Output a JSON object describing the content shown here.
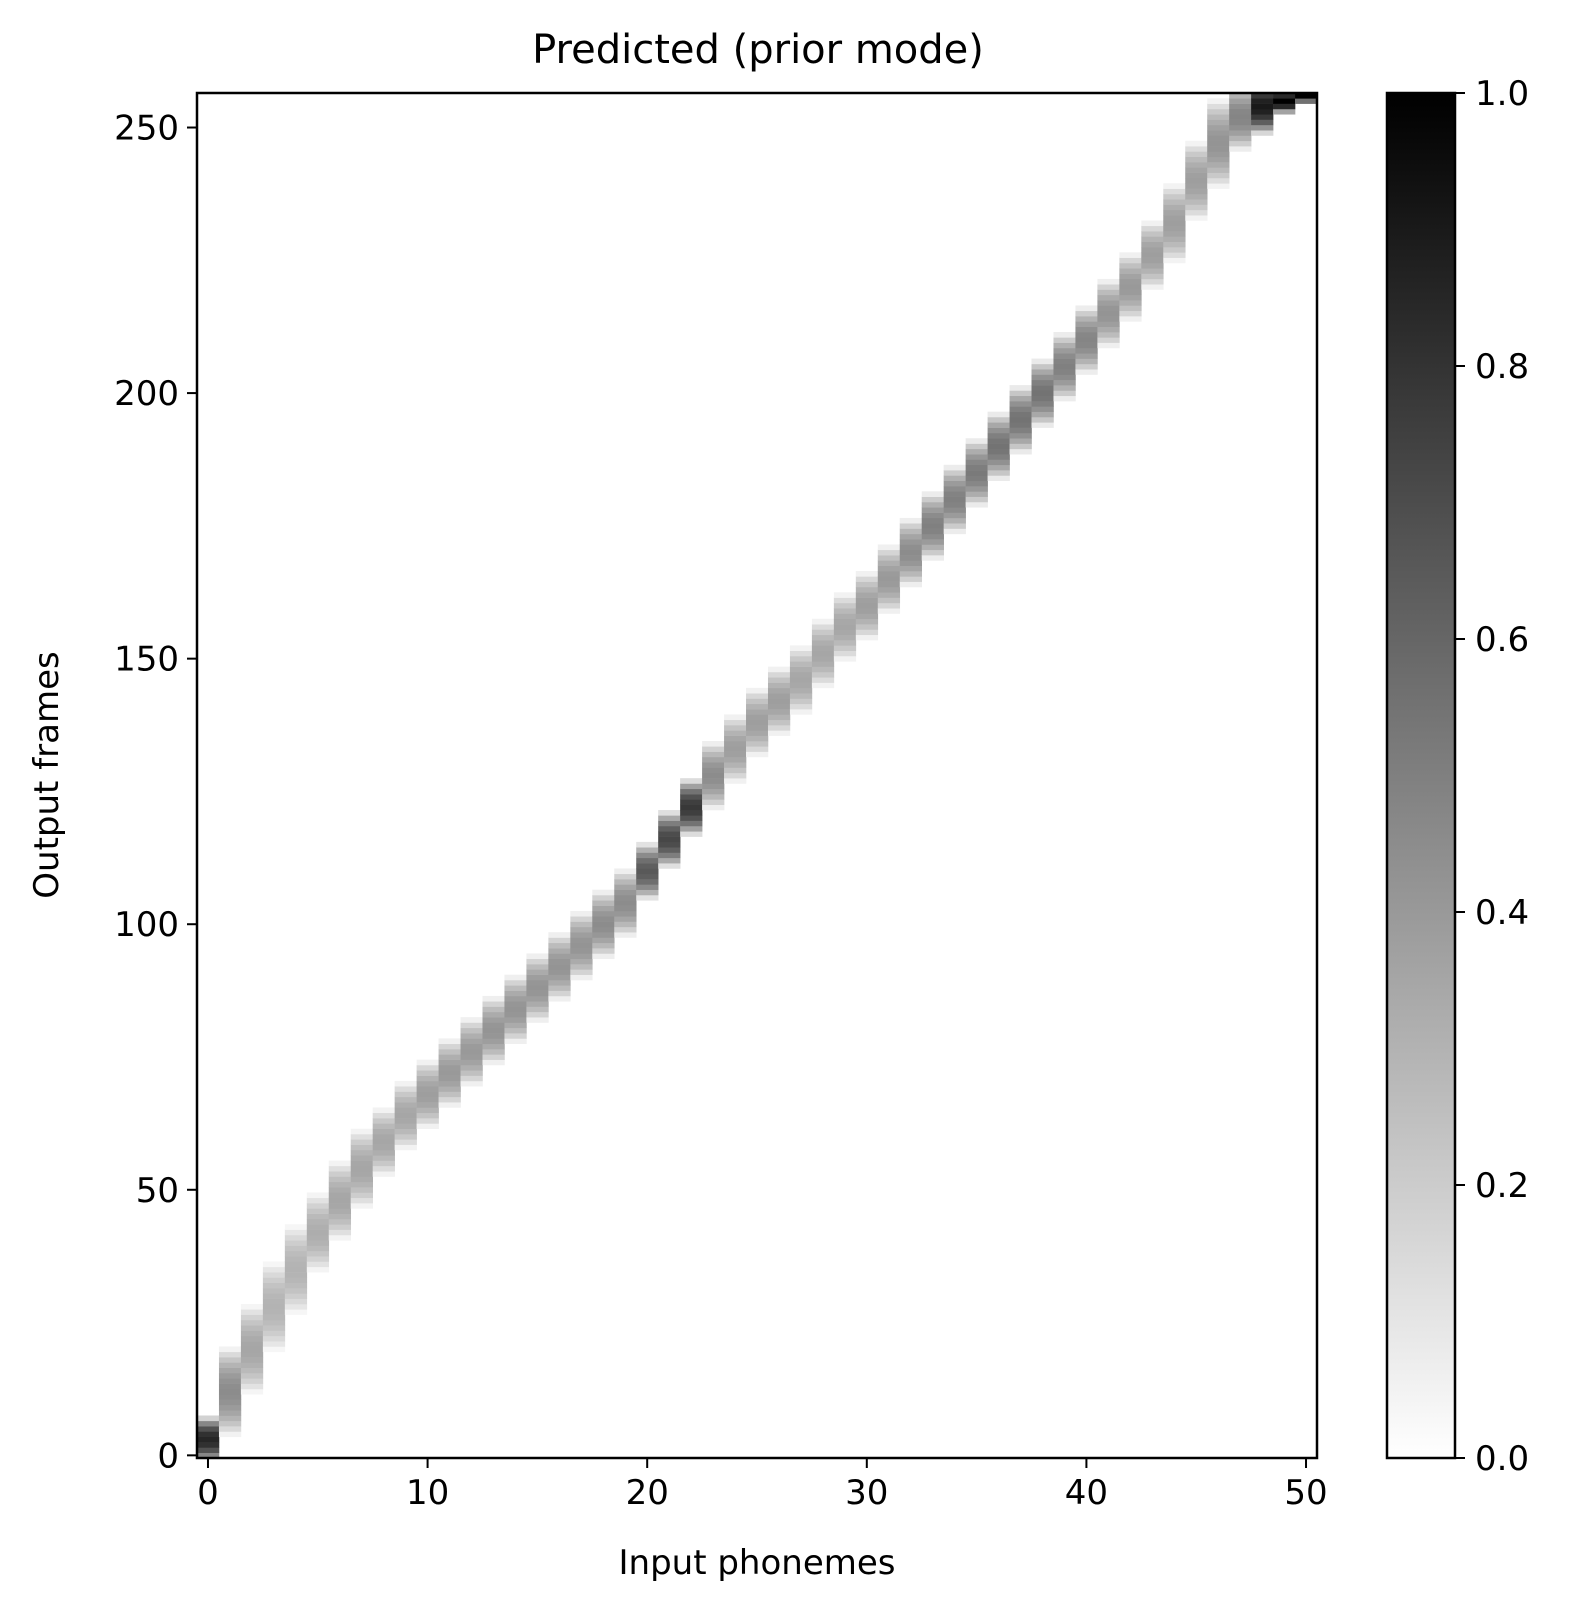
{
  "chart_data": {
    "type": "heatmap",
    "title": "Predicted (prior mode)",
    "xlabel": "Input phonemes",
    "ylabel": "Output frames",
    "xlim": [
      -0.5,
      50.5
    ],
    "ylim": [
      -0.5,
      256.5
    ],
    "x_ticks": [
      0,
      10,
      20,
      30,
      40,
      50
    ],
    "y_ticks": [
      0,
      50,
      100,
      150,
      200,
      250
    ],
    "x_tick_labels": [
      "0",
      "10",
      "20",
      "30",
      "40",
      "50"
    ],
    "y_tick_labels": [
      "0",
      "50",
      "100",
      "150",
      "200",
      "250"
    ],
    "colormap": "gray_r",
    "colorbar": {
      "range": [
        0.0,
        1.0
      ],
      "ticks": [
        0.0,
        0.2,
        0.4,
        0.6,
        0.8,
        1.0
      ],
      "tick_labels": [
        "0.0",
        "0.2",
        "0.4",
        "0.6",
        "0.8",
        "1.0"
      ]
    },
    "num_phonemes": 51,
    "num_frames": 257,
    "alignment_path": {
      "phoneme_index": [
        0,
        1,
        2,
        3,
        4,
        5,
        6,
        7,
        8,
        9,
        10,
        11,
        12,
        13,
        14,
        15,
        16,
        17,
        18,
        19,
        20,
        21,
        22,
        23,
        24,
        25,
        26,
        27,
        28,
        29,
        30,
        31,
        32,
        33,
        34,
        35,
        36,
        37,
        38,
        39,
        40,
        41,
        42,
        43,
        44,
        45,
        46,
        47,
        48,
        49,
        50
      ],
      "center_frame": [
        3,
        12,
        20,
        28,
        35,
        42,
        48,
        54,
        59,
        64,
        68,
        72,
        76,
        80,
        84,
        88,
        92,
        96,
        100,
        104,
        110,
        116,
        122,
        128,
        133,
        138,
        142,
        146,
        151,
        156,
        160,
        165,
        170,
        175,
        180,
        185,
        190,
        195,
        200,
        205,
        210,
        215,
        220,
        226,
        232,
        240,
        247,
        252,
        254,
        255,
        256
      ],
      "half_width_frames": [
        4,
        8,
        8,
        8,
        8,
        7,
        7,
        7,
        6,
        6,
        6,
        6,
        6,
        6,
        6,
        6,
        6,
        6,
        6,
        6,
        5,
        5,
        5,
        6,
        6,
        6,
        6,
        6,
        6,
        6,
        6,
        6,
        6,
        6,
        6,
        6,
        6,
        6,
        6,
        6,
        6,
        6,
        6,
        6,
        7,
        7,
        8,
        6,
        5,
        2,
        1
      ],
      "peak_value": [
        0.85,
        0.45,
        0.35,
        0.3,
        0.3,
        0.32,
        0.35,
        0.35,
        0.35,
        0.35,
        0.38,
        0.4,
        0.4,
        0.42,
        0.42,
        0.42,
        0.42,
        0.42,
        0.45,
        0.45,
        0.65,
        0.72,
        0.78,
        0.45,
        0.38,
        0.38,
        0.38,
        0.35,
        0.35,
        0.35,
        0.38,
        0.4,
        0.45,
        0.5,
        0.5,
        0.52,
        0.55,
        0.55,
        0.55,
        0.5,
        0.48,
        0.42,
        0.4,
        0.38,
        0.38,
        0.38,
        0.42,
        0.48,
        0.9,
        1.0,
        1.0
      ]
    }
  }
}
